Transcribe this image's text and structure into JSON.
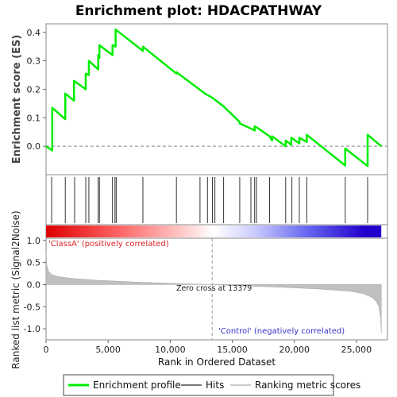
{
  "chart_data": [
    {
      "type": "line",
      "title": "Enrichment plot: HDACPATHWAY",
      "ylabel": "Enrichment score (ES)",
      "xlim": [
        0,
        27500
      ],
      "ylim": [
        -0.1,
        0.43
      ],
      "yticks": [
        0.0,
        0.1,
        0.2,
        0.3,
        0.4
      ],
      "ytick_labels": [
        "0.0",
        "0.1",
        "0.2",
        "0.3",
        "0.4"
      ],
      "grid": false,
      "series": [
        {
          "name": "Enrichment profile",
          "color": "#00ee00",
          "x": [
            0,
            500,
            500,
            1550,
            1550,
            2250,
            2250,
            3200,
            3200,
            3450,
            3450,
            4200,
            4200,
            4300,
            4300,
            5350,
            5350,
            5600,
            5600,
            7800,
            7800,
            10500,
            10500,
            12800,
            13400,
            14300,
            15600,
            15600,
            16600,
            16800,
            16800,
            17000,
            18000,
            18200,
            18200,
            19300,
            19300,
            19750,
            19750,
            20400,
            20400,
            21000,
            21000,
            24100,
            24100,
            25900,
            25900,
            27000
          ],
          "y": [
            0.0,
            -0.015,
            0.135,
            0.095,
            0.185,
            0.16,
            0.23,
            0.2,
            0.255,
            0.25,
            0.3,
            0.27,
            0.32,
            0.31,
            0.355,
            0.32,
            0.355,
            0.35,
            0.41,
            0.335,
            0.35,
            0.255,
            0.26,
            0.185,
            0.17,
            0.14,
            0.085,
            0.08,
            0.06,
            0.055,
            0.07,
            0.065,
            0.035,
            0.02,
            0.035,
            0.0,
            0.02,
            0.005,
            0.03,
            0.01,
            0.03,
            0.015,
            0.04,
            -0.068,
            -0.008,
            -0.07,
            0.04,
            0.0
          ]
        }
      ]
    },
    {
      "type": "scatter",
      "title": "",
      "legend_label": "Hits",
      "xlim": [
        0,
        27500
      ],
      "x": [
        450,
        1550,
        2300,
        3200,
        3450,
        4200,
        4300,
        5350,
        5550,
        5650,
        7800,
        10500,
        12400,
        13000,
        13400,
        13600,
        14300,
        15600,
        16500,
        16800,
        16950,
        18000,
        19300,
        19800,
        20400,
        21000,
        24100,
        25900
      ]
    },
    {
      "type": "heatmap",
      "title": "",
      "xlim": [
        0,
        27000
      ],
      "colormap": [
        "#dd0000",
        "#ff6666",
        "#ffbbbb",
        "#ffffff",
        "#ccccff",
        "#6666ee",
        "#2200cc"
      ],
      "annotations": [
        "'ClassA' (positively correlated)",
        "'Control' (negatively correlated)"
      ]
    },
    {
      "type": "area",
      "title": "",
      "legend_label": "Ranking metric scores",
      "ylabel": "Ranked list metric (Signal2Noise)",
      "xlabel": "Rank in Ordered Dataset",
      "xlim": [
        0,
        27500
      ],
      "ylim": [
        -1.25,
        1.05
      ],
      "yticks": [
        -1.0,
        -0.5,
        0.0,
        0.5,
        1.0
      ],
      "ytick_labels": [
        "-1.0",
        "-0.5",
        "0.0",
        "0.5",
        "1.0"
      ],
      "xticks": [
        0,
        5000,
        10000,
        15000,
        20000,
        25000
      ],
      "xtick_labels": [
        "0",
        "5,000",
        "10,000",
        "15,000",
        "20,000",
        "25,000"
      ],
      "zero_cross_rank": 13379,
      "zero_cross_label": "Zero cross at 13379",
      "fill_color": "#c0c0c0",
      "x": [
        0,
        50,
        200,
        500,
        1000,
        2000,
        4000,
        7000,
        10000,
        13379,
        16000,
        19000,
        22000,
        24500,
        25500,
        26200,
        26600,
        26800,
        26950,
        27000
      ],
      "y": [
        0.72,
        0.45,
        0.3,
        0.22,
        0.18,
        0.14,
        0.1,
        0.06,
        0.03,
        0.0,
        -0.03,
        -0.06,
        -0.1,
        -0.15,
        -0.2,
        -0.28,
        -0.38,
        -0.5,
        -0.75,
        -1.1
      ]
    }
  ],
  "legend": {
    "items": [
      {
        "label": "Enrichment profile",
        "color": "#00ee00"
      },
      {
        "label": "Hits",
        "color": "#777777"
      },
      {
        "label": "Ranking metric scores",
        "color": "#cccccc"
      }
    ]
  }
}
